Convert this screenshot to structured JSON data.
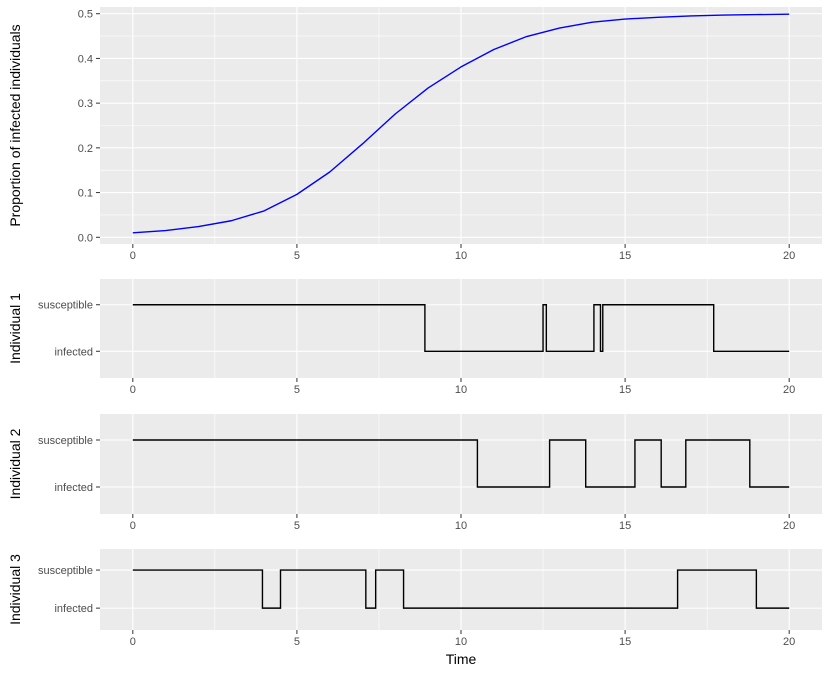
{
  "chart_data": [
    {
      "type": "line",
      "ylabel": "Proportion of infected individuals",
      "xlabel": "",
      "xlim": [
        -1,
        21
      ],
      "ylim": [
        -0.015,
        0.515
      ],
      "x_ticks": [
        0,
        5,
        10,
        15,
        20
      ],
      "x_tick_labels": [
        "0",
        "5",
        "10",
        "15",
        "20"
      ],
      "y_ticks": [
        0,
        0.1,
        0.2,
        0.3,
        0.4,
        0.5
      ],
      "y_tick_labels": [
        "0.0",
        "0.1",
        "0.2",
        "0.3",
        "0.4",
        "0.5"
      ],
      "grid": true,
      "line_color": "#0000ff",
      "series": [
        {
          "x": [
            0,
            1,
            2,
            3,
            4,
            5,
            6,
            7,
            8,
            9,
            10,
            11,
            12,
            13,
            14,
            15,
            16,
            17,
            18,
            19,
            20
          ],
          "y": [
            0.01,
            0.015,
            0.024,
            0.037,
            0.059,
            0.096,
            0.146,
            0.209,
            0.276,
            0.334,
            0.381,
            0.42,
            0.449,
            0.468,
            0.481,
            0.488,
            0.492,
            0.495,
            0.497,
            0.498,
            0.499
          ]
        }
      ]
    },
    {
      "type": "line",
      "ylabel": "Individual 1",
      "xlim": [
        -1,
        21
      ],
      "y_tick_labels": [
        "susceptible",
        "infected"
      ],
      "x_ticks": [
        0,
        5,
        10,
        15,
        20
      ],
      "x_tick_labels": [
        "0",
        "5",
        "10",
        "15",
        "20"
      ],
      "grid": true,
      "line_color": "#000000",
      "step": true,
      "states": [
        {
          "t": 0,
          "state": "susceptible"
        },
        {
          "t": 8.9,
          "state": "infected"
        },
        {
          "t": 12.5,
          "state": "susceptible"
        },
        {
          "t": 12.6,
          "state": "infected"
        },
        {
          "t": 14.05,
          "state": "susceptible"
        },
        {
          "t": 14.25,
          "state": "infected"
        },
        {
          "t": 14.32,
          "state": "susceptible"
        },
        {
          "t": 17.7,
          "state": "infected"
        }
      ],
      "end": 20
    },
    {
      "type": "line",
      "ylabel": "Individual 2",
      "xlim": [
        -1,
        21
      ],
      "y_tick_labels": [
        "susceptible",
        "infected"
      ],
      "x_ticks": [
        0,
        5,
        10,
        15,
        20
      ],
      "x_tick_labels": [
        "0",
        "5",
        "10",
        "15",
        "20"
      ],
      "grid": true,
      "line_color": "#000000",
      "step": true,
      "states": [
        {
          "t": 0,
          "state": "susceptible"
        },
        {
          "t": 10.5,
          "state": "infected"
        },
        {
          "t": 12.7,
          "state": "susceptible"
        },
        {
          "t": 13.8,
          "state": "infected"
        },
        {
          "t": 15.3,
          "state": "susceptible"
        },
        {
          "t": 16.1,
          "state": "infected"
        },
        {
          "t": 16.85,
          "state": "susceptible"
        },
        {
          "t": 18.8,
          "state": "infected"
        }
      ],
      "end": 20
    },
    {
      "type": "line",
      "ylabel": "Individual 3",
      "xlabel": "Time",
      "xlim": [
        -1,
        21
      ],
      "y_tick_labels": [
        "susceptible",
        "infected"
      ],
      "x_ticks": [
        0,
        5,
        10,
        15,
        20
      ],
      "x_tick_labels": [
        "0",
        "5",
        "10",
        "15",
        "20"
      ],
      "grid": true,
      "line_color": "#000000",
      "step": true,
      "states": [
        {
          "t": 0,
          "state": "susceptible"
        },
        {
          "t": 3.95,
          "state": "infected"
        },
        {
          "t": 4.5,
          "state": "susceptible"
        },
        {
          "t": 7.1,
          "state": "infected"
        },
        {
          "t": 7.4,
          "state": "susceptible"
        },
        {
          "t": 8.25,
          "state": "infected"
        },
        {
          "t": 16.6,
          "state": "susceptible"
        },
        {
          "t": 19.0,
          "state": "infected"
        }
      ],
      "end": 20
    }
  ]
}
